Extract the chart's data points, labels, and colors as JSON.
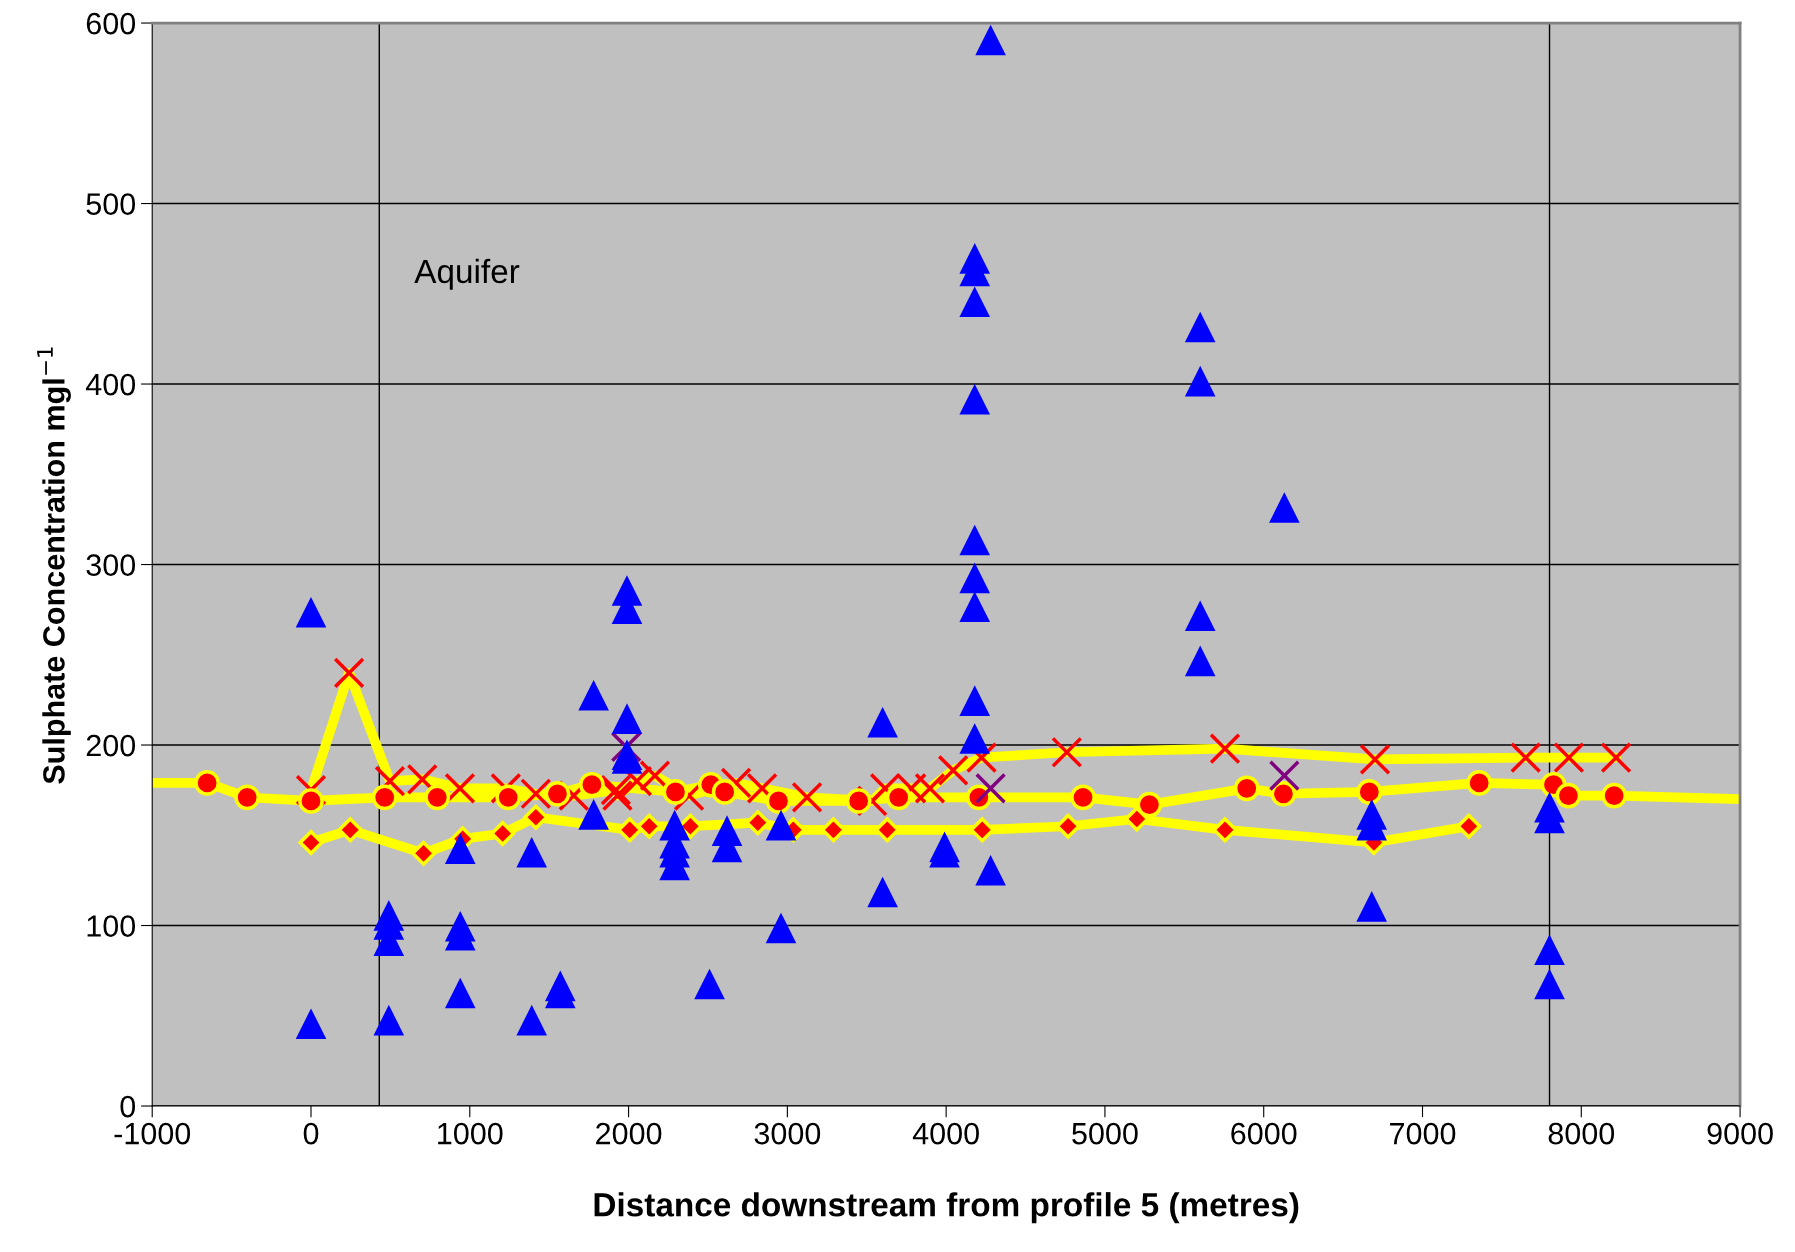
{
  "chart_data": {
    "type": "scatter",
    "xlabel": "Distance downstream from profile 5 (metres)",
    "ylabel": "Sulphate Concentration mgl$^{−1}$",
    "annotations": [
      "Aquifer"
    ],
    "xlim": [
      -1000,
      9000
    ],
    "xticks": [
      -1000,
      0,
      1000,
      2000,
      3000,
      4000,
      5000,
      6000,
      7000,
      8000,
      9000
    ],
    "ylim": [
      0,
      600
    ],
    "yticks": [
      0,
      100,
      200,
      300,
      400,
      500,
      600
    ],
    "grid": "y",
    "ref_lines": [
      {
        "axis": "x",
        "value": 430,
        "color": "#000000"
      },
      {
        "axis": "x",
        "value": 7800,
        "color": "#000000"
      }
    ],
    "series": [
      {
        "type": "line",
        "color": "#ffff00",
        "x": [
          -1000,
          -654,
          -402,
          0,
          464,
          795,
          1242,
          1552,
          1769,
          2295,
          2518,
          2605,
          2944,
          3449,
          3701,
          4206,
          4862,
          5280,
          5893,
          6124,
          6665,
          7357,
          7825,
          7919,
          8207,
          9000
        ],
        "values": [
          179,
          179,
          171,
          169,
          171,
          171,
          171,
          173,
          178,
          174,
          178,
          174,
          169,
          169,
          171,
          171,
          171,
          167,
          176,
          173,
          174,
          179,
          178,
          172,
          172,
          170
        ]
      },
      {
        "type": "line",
        "color": "#ff0000",
        "marker": "cross",
        "x": [
          0,
          240,
          497,
          701,
          938,
          1227,
          1416,
          1655,
          1920,
          1930,
          2052,
          2166,
          2381,
          2677,
          2841,
          3124,
          3534,
          3616,
          3780,
          3898,
          4044,
          4223,
          4760,
          5756,
          6701,
          7650,
          7922,
          8219
        ],
        "values": [
          175,
          240,
          180,
          181,
          176,
          176,
          173,
          172,
          175,
          172,
          180,
          183,
          172,
          179,
          176,
          171,
          169,
          176,
          176,
          176,
          186,
          193,
          196,
          198,
          192,
          193,
          193,
          193
        ]
      },
      {
        "type": "line",
        "color": "#ffff00",
        "x": [
          0,
          247,
          709,
          955,
          1207,
          1416,
          2007,
          2130,
          2389,
          2814,
          3037,
          3290,
          3629,
          4227,
          4768,
          5201,
          5756,
          6694,
          7292
        ],
        "values": [
          146,
          153,
          140,
          148,
          151,
          160,
          153,
          155,
          155,
          157,
          153,
          153,
          153,
          153,
          155,
          159,
          153,
          146,
          155
        ]
      },
      {
        "color": "#ff0000",
        "marker": "circle",
        "x": [
          -654,
          -402,
          0,
          464,
          795,
          1242,
          1552,
          1769,
          2295,
          2518,
          2605,
          2944,
          3449,
          3701,
          4206,
          4862,
          5280,
          5893,
          6124,
          6665,
          7357,
          7825,
          7919,
          8207
        ],
        "values": [
          179,
          171,
          169,
          171,
          171,
          171,
          173,
          178,
          174,
          178,
          174,
          169,
          169,
          171,
          171,
          171,
          167,
          176,
          173,
          174,
          179,
          178,
          172,
          172
        ]
      },
      {
        "color": "#ff0000",
        "marker": "diamond",
        "x": [
          0,
          247,
          709,
          955,
          1207,
          1416,
          2007,
          2130,
          2389,
          2814,
          3037,
          3290,
          3629,
          4227,
          4768,
          5201,
          5756,
          6694,
          7292
        ],
        "values": [
          146,
          153,
          140,
          148,
          151,
          160,
          153,
          155,
          155,
          157,
          153,
          153,
          153,
          153,
          155,
          159,
          153,
          146,
          155
        ]
      },
      {
        "color": "#800080",
        "marker": "cross",
        "x": [
          1985,
          4280,
          6130
        ],
        "values": [
          199,
          176,
          183
        ]
      },
      {
        "color": "#0000ff",
        "marker": "triangle",
        "x": [
          0,
          0,
          490,
          490,
          490,
          490,
          940,
          940,
          940,
          940,
          1390,
          1390,
          1570,
          1570,
          1780,
          1780,
          1990,
          1990,
          1990,
          1990,
          1990,
          2290,
          2290,
          2290,
          2290,
          2510,
          2620,
          2620,
          2960,
          2960,
          3600,
          3600,
          3990,
          3990,
          4180,
          4180,
          4180,
          4180,
          4180,
          4180,
          4180,
          4180,
          4180,
          4280,
          4280,
          5600,
          5600,
          5600,
          5600,
          6130,
          6680,
          6680,
          6680,
          7800,
          7800,
          7800,
          7800
        ],
        "values": [
          273,
          45,
          105,
          100,
          91,
          47,
          142,
          99,
          94,
          62,
          140,
          47,
          66,
          62,
          227,
          161,
          285,
          275,
          214,
          194,
          192,
          155,
          145,
          140,
          133,
          67,
          152,
          143,
          98,
          155,
          212,
          118,
          143,
          140,
          469,
          462,
          445,
          391,
          313,
          292,
          276,
          224,
          203,
          590,
          130,
          431,
          401,
          271,
          246,
          331,
          161,
          155,
          110,
          165,
          159,
          86,
          67
        ]
      }
    ]
  }
}
